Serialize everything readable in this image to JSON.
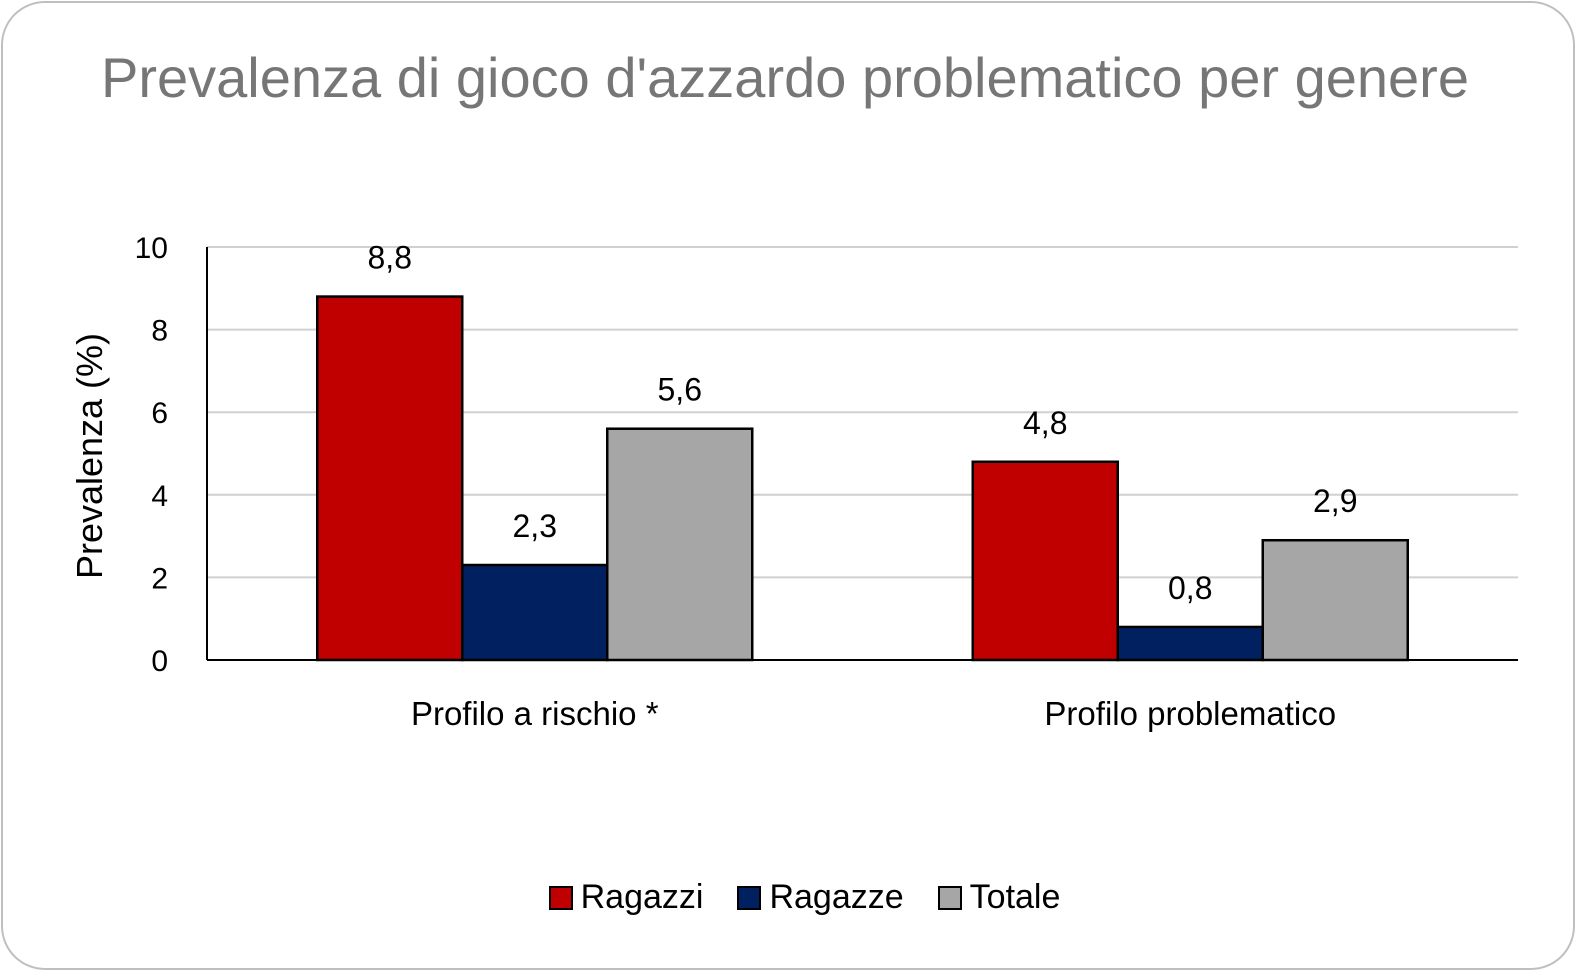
{
  "chart_data": {
    "type": "bar",
    "title": "Prevalenza di gioco d'azzardo problematico per genere",
    "ylabel": "Prevalenza (%)",
    "xlabel": "",
    "ylim": [
      0,
      10
    ],
    "yticks": [
      0,
      2,
      4,
      6,
      8,
      10
    ],
    "categories": [
      "Profilo a rischio *",
      "Profilo problematico"
    ],
    "series": [
      {
        "name": "Ragazzi",
        "color": "#c00000",
        "values": [
          8.8,
          4.8
        ],
        "labels": [
          "8,8",
          "4,8"
        ]
      },
      {
        "name": "Ragazze",
        "color": "#002060",
        "values": [
          2.3,
          0.8
        ],
        "labels": [
          "2,3",
          "0,8"
        ]
      },
      {
        "name": "Totale",
        "color": "#a6a6a6",
        "values": [
          5.6,
          2.9
        ],
        "labels": [
          "5,6",
          "2,9"
        ]
      }
    ],
    "grid": true,
    "legend_position": "bottom"
  }
}
